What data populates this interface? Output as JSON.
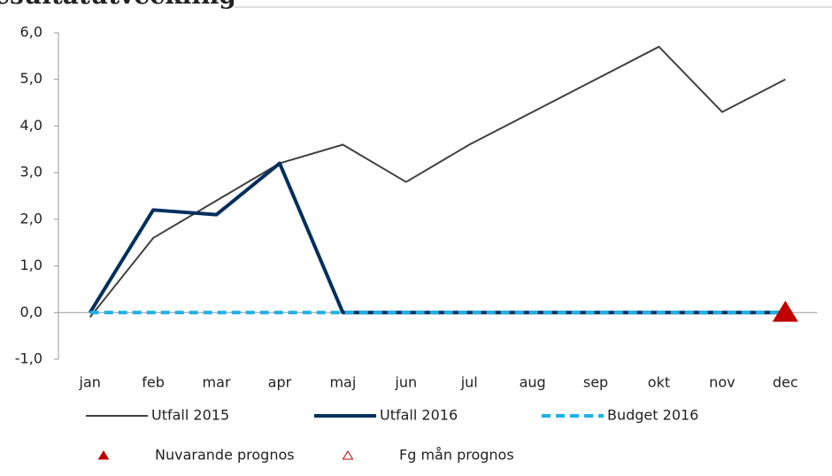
{
  "chart_data": {
    "type": "line",
    "title": "Resultatutveckling",
    "categories": [
      "jan",
      "feb",
      "mar",
      "apr",
      "maj",
      "jun",
      "jul",
      "aug",
      "sep",
      "okt",
      "nov",
      "dec"
    ],
    "series": [
      {
        "name": "Utfall 2015",
        "color": "#404040",
        "width": 2,
        "values": [
          -0.1,
          1.6,
          2.4,
          3.2,
          3.6,
          2.8,
          3.6,
          4.3,
          5.0,
          5.7,
          4.3,
          5.0
        ]
      },
      {
        "name": "Utfall 2016",
        "color": "#002f5f",
        "width": 4,
        "values": [
          0,
          2.2,
          2.1,
          3.2,
          0,
          0,
          0,
          0,
          0,
          0,
          0,
          0
        ]
      },
      {
        "name": "Budget 2016",
        "color": "#1fb0e6",
        "width": 4,
        "dash": true,
        "values": [
          0,
          0,
          0,
          0,
          0,
          0,
          0,
          0,
          0,
          0,
          0,
          0
        ]
      },
      {
        "name": "Nuvarande prognos",
        "color": "#c00000",
        "marker": "triangle",
        "filled": true,
        "values": [
          null,
          null,
          null,
          null,
          null,
          null,
          null,
          null,
          null,
          null,
          null,
          0
        ]
      },
      {
        "name": "Fg mån prognos",
        "color": "#c00000",
        "marker": "triangle",
        "filled": false,
        "values": [
          null,
          null,
          null,
          null,
          null,
          null,
          null,
          null,
          null,
          null,
          null,
          null
        ]
      }
    ],
    "ylim": [
      -1,
      6
    ],
    "yticks": [
      {
        "value": -1,
        "label": "-1,0"
      },
      {
        "value": 0,
        "label": "0,0"
      },
      {
        "value": 1,
        "label": "1,0"
      },
      {
        "value": 2,
        "label": "2,0"
      },
      {
        "value": 3,
        "label": "3,0"
      },
      {
        "value": 4,
        "label": "4,0"
      },
      {
        "value": 5,
        "label": "5,0"
      },
      {
        "value": 6,
        "label": "6,0"
      }
    ],
    "grid": false
  }
}
